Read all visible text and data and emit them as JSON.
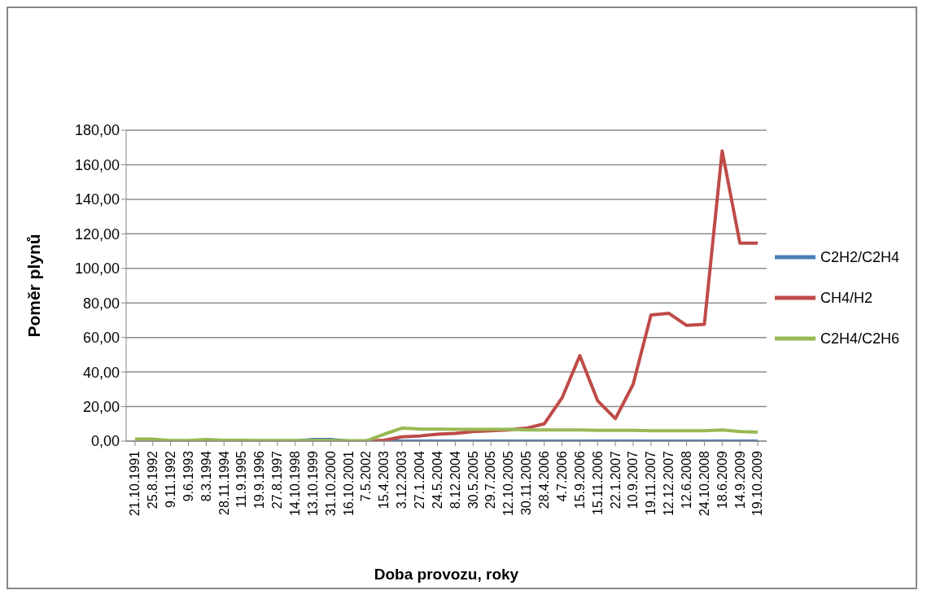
{
  "chart_data": {
    "type": "line",
    "xlabel": "Doba provozu, roky",
    "ylabel": "Poměr plynů",
    "categories": [
      "21.10.1991",
      "25.8.1992",
      "9.11.1992",
      "9.6.1993",
      "8.3.1994",
      "28.11.1994",
      "11.9.1995",
      "19.9.1996",
      "27.8.1997",
      "14.10.1998",
      "13.10.1999",
      "31.10.2000",
      "16.10.2001",
      "7.5.2002",
      "15.4.2003",
      "3.12.2003",
      "27.1.2004",
      "24.5.2004",
      "8.12.2004",
      "30.5.2005",
      "29.7.2005",
      "12.10.2005",
      "30.11.2005",
      "28.4.2006",
      "4.7.2006",
      "15.9.2006",
      "15.11.2006",
      "22.1.2007",
      "10.9.2007",
      "19.11.2007",
      "12.12.2007",
      "12.6.2008",
      "24.10.2008",
      "18.6.2009",
      "14.9.2009",
      "19.10.2009"
    ],
    "series": [
      {
        "name": "C2H2/C2H4",
        "color": "#4a7ebb",
        "values": [
          null,
          null,
          null,
          null,
          null,
          null,
          null,
          null,
          null,
          0,
          1,
          1,
          0,
          0,
          0,
          0,
          0,
          0,
          0,
          0,
          0,
          0,
          0,
          0,
          0,
          0,
          0,
          0,
          0,
          0,
          0,
          0,
          0,
          0,
          0,
          0
        ]
      },
      {
        "name": "CH4/H2",
        "color": "#be4b48",
        "values": [
          null,
          null,
          null,
          null,
          null,
          null,
          null,
          null,
          null,
          null,
          null,
          null,
          0,
          0,
          0.5,
          2.5,
          3,
          4,
          4.5,
          5.5,
          6,
          6.5,
          7.5,
          10,
          25,
          49.5,
          23.4,
          13,
          33,
          73,
          74,
          67,
          67.6,
          168,
          114.6,
          114.6
        ]
      },
      {
        "name": "C2H4/C2H6",
        "color": "#98b954",
        "values": [
          1.2,
          1.2,
          0.3,
          0.3,
          1,
          0.5,
          0.5,
          0.3,
          0.3,
          0.3,
          0.3,
          0.3,
          0.2,
          0.2,
          4,
          7.5,
          7,
          7,
          6.8,
          6.8,
          6.8,
          6.8,
          6.5,
          6.5,
          6.5,
          6.5,
          6.3,
          6.2,
          6.2,
          6,
          6,
          6,
          6,
          6.5,
          5.5,
          5.2
        ]
      }
    ],
    "ylim": [
      0,
      180
    ],
    "yticks": [
      {
        "value": 0,
        "label": "0,00"
      },
      {
        "value": 20,
        "label": "20,00"
      },
      {
        "value": 40,
        "label": "40,00"
      },
      {
        "value": 60,
        "label": "60,00"
      },
      {
        "value": 80,
        "label": "80,00"
      },
      {
        "value": 100,
        "label": "100,00"
      },
      {
        "value": 120,
        "label": "120,00"
      },
      {
        "value": 140,
        "label": "140,00"
      },
      {
        "value": 160,
        "label": "160,00"
      },
      {
        "value": 180,
        "label": "180,00"
      }
    ],
    "grid": "y",
    "legend": "right"
  }
}
